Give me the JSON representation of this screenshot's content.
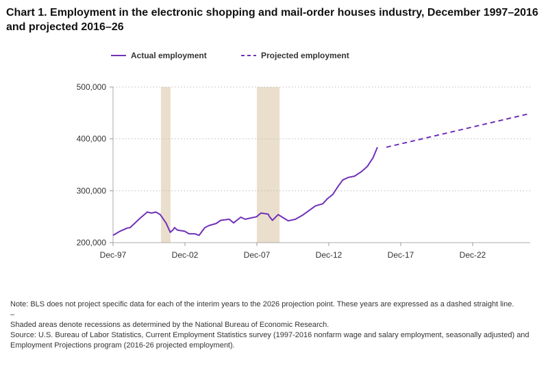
{
  "chart_data": {
    "type": "line",
    "title": "Chart 1. Employment in the electronic shopping and mail-order houses industry, December 1997–2016 and projected 2016–26",
    "xlabel": "",
    "ylabel": "",
    "xlim": [
      1997.92,
      2026.92
    ],
    "ylim": [
      200000,
      500000
    ],
    "grid": true,
    "legend_position": "top-left",
    "x_ticks": [
      {
        "label": "Dec-97",
        "x": 1997.92
      },
      {
        "label": "Dec-02",
        "x": 2002.92
      },
      {
        "label": "Dec-07",
        "x": 2007.92
      },
      {
        "label": "Dec-12",
        "x": 2012.92
      },
      {
        "label": "Dec-17",
        "x": 2017.92
      },
      {
        "label": "Dec-22",
        "x": 2022.92
      }
    ],
    "y_ticks": [
      {
        "label": "200,000",
        "y": 200000
      },
      {
        "label": "300,000",
        "y": 300000
      },
      {
        "label": "400,000",
        "y": 400000
      },
      {
        "label": "500,000",
        "y": 500000
      }
    ],
    "recessions": [
      [
        2001.25,
        2001.92
      ],
      [
        2007.92,
        2009.5
      ]
    ],
    "series": [
      {
        "name": "Actual employment",
        "style": "solid",
        "color": "#7030b8",
        "x": [
          1997.92,
          1998.4,
          1998.9,
          1999.1,
          1999.3,
          1999.8,
          2000.3,
          2000.6,
          2000.9,
          2001.2,
          2001.6,
          2001.9,
          2002.1,
          2002.2,
          2002.4,
          2002.9,
          2003.2,
          2003.6,
          2003.9,
          2004.3,
          2004.6,
          2005.1,
          2005.4,
          2006.0,
          2006.3,
          2006.8,
          2007.1,
          2007.9,
          2008.2,
          2008.7,
          2008.8,
          2009.0,
          2009.4,
          2009.8,
          2010.1,
          2010.6,
          2011.1,
          2011.6,
          2012.0,
          2012.5,
          2012.8,
          2013.2,
          2013.6,
          2013.9,
          2014.3,
          2014.7,
          2015.2,
          2015.6,
          2016.0,
          2016.3
        ],
        "y": [
          214000,
          222000,
          228000,
          229000,
          234000,
          247000,
          259000,
          257000,
          259000,
          254000,
          238000,
          220000,
          225000,
          229000,
          224000,
          222000,
          217000,
          217000,
          214000,
          229000,
          233000,
          237000,
          243000,
          245000,
          238000,
          249000,
          245000,
          250000,
          257000,
          255000,
          250000,
          243000,
          254000,
          247000,
          242000,
          245000,
          253000,
          263000,
          271000,
          275000,
          284000,
          293000,
          310000,
          321000,
          326000,
          328000,
          337000,
          347000,
          364000,
          384000
        ]
      },
      {
        "name": "Projected employment",
        "style": "dashed",
        "color": "#7030b8",
        "x": [
          2016.92,
          2026.92
        ],
        "y": [
          384000,
          449000
        ]
      }
    ]
  },
  "notes": {
    "note": "Note: BLS does not project specific data for each of the interim years to the 2026 projection point. These years are expressed as a dashed straight line.",
    "dash": "–",
    "shaded": "Shaded areas denote recessions as determined by the National Bureau of Economic Research.",
    "source": "Source: U.S. Bureau of Labor Statistics, Current Employment Statistics survey (1997-2016 nonfarm wage and salary employment, seasonally adjusted) and Employment Projections program (2016-26 projected employment)."
  }
}
